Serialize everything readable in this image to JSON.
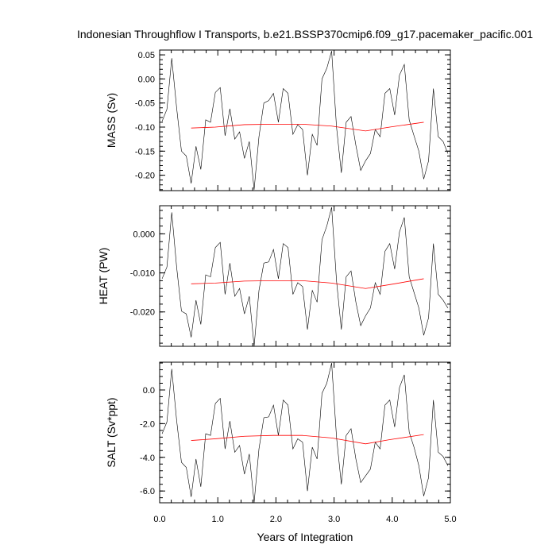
{
  "chart_data": {
    "type": "line",
    "title": "Indonesian Throughflow I Transports, b.e21.BSSP370cmip6.f09_g17.pacemaker_pacific.001",
    "xlabel": "Years of Integration",
    "xlim": [
      0,
      5
    ],
    "x_ticks": [
      0,
      1,
      2,
      3,
      4,
      5
    ],
    "x_tick_labels": [
      "0.0",
      "1.0",
      "2.0",
      "3.0",
      "4.0",
      "5.0"
    ],
    "x": [
      0.042,
      0.125,
      0.208,
      0.292,
      0.375,
      0.458,
      0.542,
      0.625,
      0.708,
      0.792,
      0.875,
      0.958,
      1.042,
      1.125,
      1.208,
      1.292,
      1.375,
      1.458,
      1.542,
      1.625,
      1.708,
      1.792,
      1.875,
      1.958,
      2.042,
      2.125,
      2.208,
      2.292,
      2.375,
      2.458,
      2.542,
      2.625,
      2.708,
      2.792,
      2.875,
      2.958,
      3.042,
      3.125,
      3.208,
      3.292,
      3.375,
      3.458,
      3.542,
      3.625,
      3.708,
      3.792,
      3.875,
      3.958,
      4.042,
      4.125,
      4.208,
      4.292,
      4.375,
      4.458,
      4.542,
      4.625,
      4.708,
      4.792,
      4.875,
      4.958
    ],
    "trend_x": [
      0.542,
      0.958,
      1.458,
      1.958,
      2.458,
      2.958,
      3.542,
      3.958,
      4.542
    ],
    "panels": [
      {
        "ylabel": "MASS (Sv)",
        "ylim": [
          -0.232,
          0.06
        ],
        "y_ticks": [
          0.05,
          0.0,
          -0.05,
          -0.1,
          -0.15,
          -0.2
        ],
        "y_tick_labels": [
          "0.05",
          "0.00",
          "-0.05",
          "-0.10",
          "-0.15",
          "-0.20"
        ],
        "minor_step": 0.01,
        "values": [
          -0.088,
          -0.063,
          0.043,
          -0.06,
          -0.15,
          -0.16,
          -0.217,
          -0.14,
          -0.188,
          -0.085,
          -0.09,
          -0.028,
          -0.018,
          -0.118,
          -0.062,
          -0.125,
          -0.11,
          -0.165,
          -0.13,
          -0.23,
          -0.12,
          -0.05,
          -0.045,
          -0.03,
          -0.09,
          -0.02,
          -0.03,
          -0.115,
          -0.095,
          -0.105,
          -0.2,
          -0.115,
          -0.138,
          0.0,
          0.022,
          0.058,
          -0.1,
          -0.195,
          -0.09,
          -0.078,
          -0.138,
          -0.19,
          -0.17,
          -0.155,
          -0.105,
          -0.12,
          -0.03,
          -0.02,
          -0.075,
          0.008,
          0.03,
          -0.085,
          -0.118,
          -0.15,
          -0.208,
          -0.17,
          -0.02,
          -0.12,
          -0.13,
          -0.155
        ],
        "trend": [
          -0.102,
          -0.1,
          -0.095,
          -0.094,
          -0.094,
          -0.098,
          -0.108,
          -0.1,
          -0.09
        ]
      },
      {
        "ylabel": "HEAT (PW)",
        "ylim": [
          -0.0288,
          0.0072
        ],
        "y_ticks": [
          0.0,
          -0.01,
          -0.02
        ],
        "y_tick_labels": [
          "0.000",
          "-0.010",
          "-0.020"
        ],
        "minor_step": 0.002,
        "values": [
          -0.0115,
          -0.0085,
          0.0055,
          -0.0085,
          -0.0198,
          -0.0205,
          -0.0265,
          -0.017,
          -0.0232,
          -0.0105,
          -0.011,
          -0.0035,
          -0.0022,
          -0.0155,
          -0.0075,
          -0.016,
          -0.014,
          -0.0205,
          -0.016,
          -0.0288,
          -0.0145,
          -0.0075,
          -0.0072,
          -0.004,
          -0.0115,
          -0.0025,
          -0.0035,
          -0.0155,
          -0.0125,
          -0.0135,
          -0.0245,
          -0.0145,
          -0.0175,
          -0.0015,
          0.002,
          0.0068,
          -0.012,
          -0.0245,
          -0.011,
          -0.0095,
          -0.0175,
          -0.0235,
          -0.021,
          -0.019,
          -0.0125,
          -0.0155,
          -0.0045,
          -0.0025,
          -0.009,
          0.0005,
          0.0042,
          -0.011,
          -0.015,
          -0.019,
          -0.026,
          -0.0215,
          -0.0025,
          -0.0155,
          -0.017,
          -0.019
        ],
        "trend": [
          -0.0128,
          -0.0126,
          -0.0121,
          -0.012,
          -0.012,
          -0.0126,
          -0.014,
          -0.013,
          -0.0115
        ]
      },
      {
        "ylabel": "SALT (Sv*ppt)",
        "ylim": [
          -6.7,
          1.65
        ],
        "y_ticks": [
          0.0,
          -2.0,
          -4.0,
          -6.0
        ],
        "y_tick_labels": [
          "0.0",
          "-2.0",
          "-4.0",
          "-6.0"
        ],
        "minor_step": 0.4,
        "values": [
          -2.6,
          -1.9,
          1.25,
          -1.8,
          -4.3,
          -4.6,
          -6.35,
          -4.1,
          -5.75,
          -2.6,
          -2.7,
          -0.8,
          -0.5,
          -3.5,
          -1.85,
          -3.7,
          -3.3,
          -5.0,
          -3.8,
          -6.7,
          -3.5,
          -1.65,
          -1.6,
          -0.9,
          -2.7,
          -0.6,
          -0.9,
          -3.5,
          -2.9,
          -3.1,
          -6.0,
          -3.4,
          -4.1,
          -0.2,
          0.4,
          1.6,
          -2.8,
          -5.6,
          -2.7,
          -2.3,
          -4.1,
          -5.5,
          -5.1,
          -4.7,
          -3.1,
          -3.5,
          -0.9,
          -0.6,
          -2.2,
          0.15,
          0.9,
          -2.5,
          -3.4,
          -4.5,
          -6.3,
          -5.2,
          -0.6,
          -3.7,
          -3.95,
          -4.5
        ],
        "trend": [
          -3.0,
          -2.9,
          -2.75,
          -2.7,
          -2.7,
          -2.85,
          -3.2,
          -2.95,
          -2.65
        ]
      }
    ]
  }
}
